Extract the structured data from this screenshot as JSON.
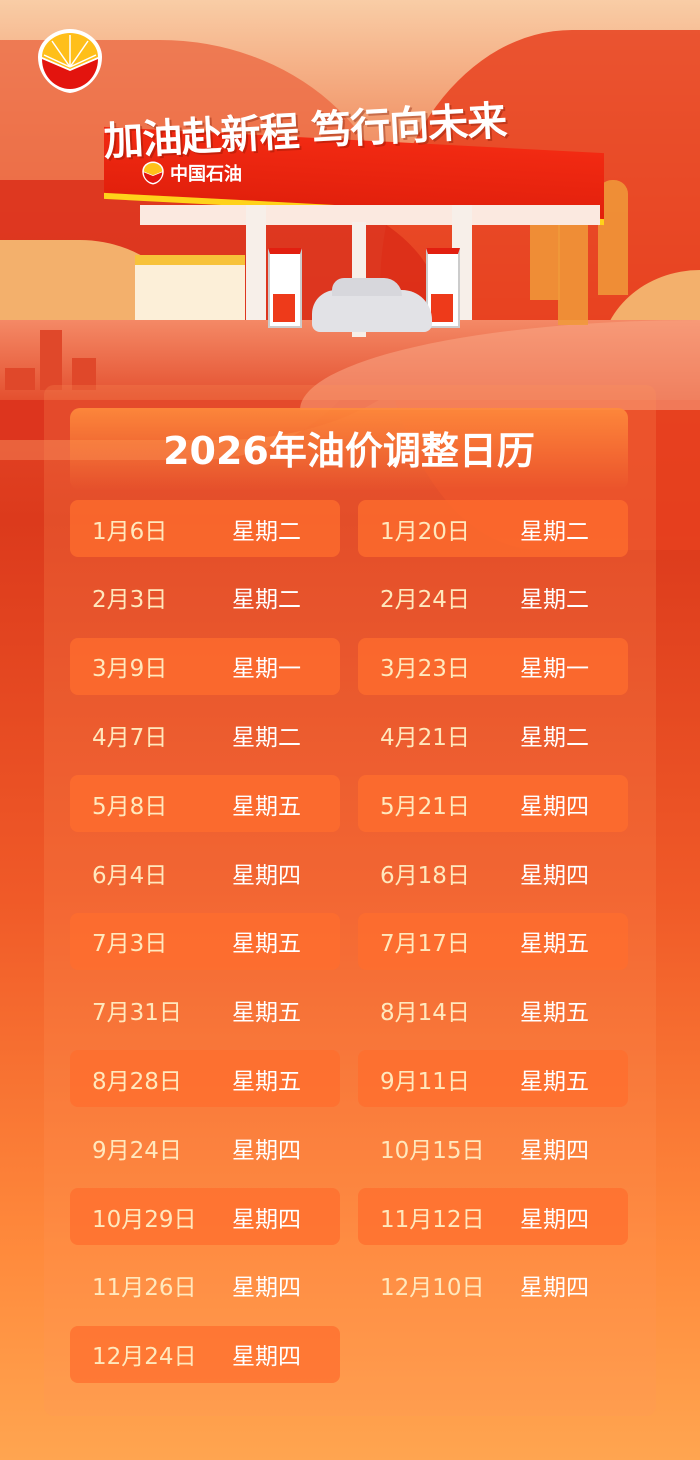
{
  "header": {
    "headline": "加油赴新程 笃行向未来",
    "brand_name": "中国石油",
    "logo": "petrochina-logo"
  },
  "calendar": {
    "title": "2026年油价调整日历",
    "colors": {
      "date_text": "#ffe8bd",
      "weekday_text": "#ffffff",
      "highlight": "#ff6e2d"
    },
    "left": [
      {
        "date": "1月6日",
        "weekday": "星期二"
      },
      {
        "date": "2月3日",
        "weekday": "星期二"
      },
      {
        "date": "3月9日",
        "weekday": "星期一"
      },
      {
        "date": "4月7日",
        "weekday": "星期二"
      },
      {
        "date": "5月8日",
        "weekday": "星期五"
      },
      {
        "date": "6月4日",
        "weekday": "星期四"
      },
      {
        "date": "7月3日",
        "weekday": "星期五"
      },
      {
        "date": "7月31日",
        "weekday": "星期五"
      },
      {
        "date": "8月28日",
        "weekday": "星期五"
      },
      {
        "date": "9月24日",
        "weekday": "星期四"
      },
      {
        "date": "10月29日",
        "weekday": "星期四"
      },
      {
        "date": "11月26日",
        "weekday": "星期四"
      },
      {
        "date": "12月24日",
        "weekday": "星期四"
      }
    ],
    "right": [
      {
        "date": "1月20日",
        "weekday": "星期二"
      },
      {
        "date": "2月24日",
        "weekday": "星期二"
      },
      {
        "date": "3月23日",
        "weekday": "星期一"
      },
      {
        "date": "4月21日",
        "weekday": "星期二"
      },
      {
        "date": "5月21日",
        "weekday": "星期四"
      },
      {
        "date": "6月18日",
        "weekday": "星期四"
      },
      {
        "date": "7月17日",
        "weekday": "星期五"
      },
      {
        "date": "8月14日",
        "weekday": "星期五"
      },
      {
        "date": "9月11日",
        "weekday": "星期五"
      },
      {
        "date": "10月15日",
        "weekday": "星期四"
      },
      {
        "date": "11月12日",
        "weekday": "星期四"
      },
      {
        "date": "12月10日",
        "weekday": "星期四"
      }
    ]
  }
}
